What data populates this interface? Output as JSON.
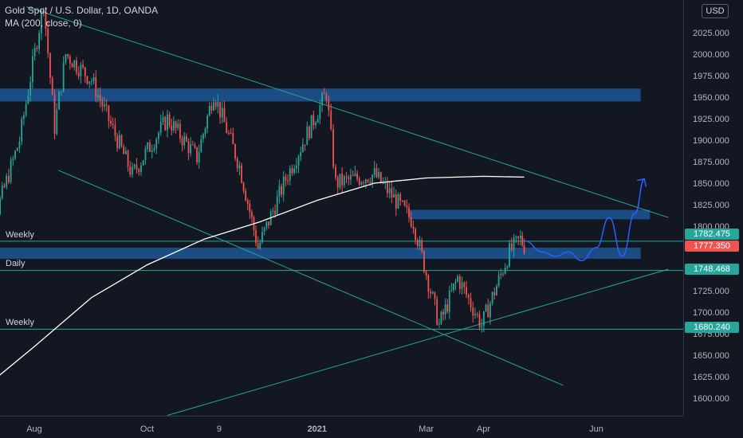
{
  "legend": {
    "title": "Gold Spot / U.S. Dollar, 1D, OANDA",
    "indicator": "MA (200, close, 0)"
  },
  "currency_button": "USD",
  "level_labels": [
    "Weekly",
    "Daily",
    "Weekly"
  ],
  "price_badges": [
    {
      "value": "1782.475",
      "color": "#26a69a"
    },
    {
      "value": "1777.350",
      "color": "#ef5350"
    },
    {
      "value": "1748.468",
      "color": "#26a69a"
    },
    {
      "value": "1680.240",
      "color": "#26a69a"
    }
  ],
  "colors": {
    "background": "#131722",
    "up": "#26a69a",
    "down": "#ef5350",
    "zone": "#1c4f8a",
    "trendline": "#26a69a",
    "ma": "#ffffff",
    "projection": "#2962ff"
  },
  "chart_data": {
    "type": "candlestick",
    "symbol": "Gold Spot / U.S. Dollar",
    "interval": "1D",
    "source": "OANDA",
    "x_ticks": [
      "Aug",
      "Oct",
      "9",
      "2021",
      "Mar",
      "Apr",
      "Jun"
    ],
    "y_ticks": [
      "1600.000",
      "1625.000",
      "1650.000",
      "1675.000",
      "1700.000",
      "1725.000",
      "1750.000",
      "1775.000",
      "1800.000",
      "1825.000",
      "1850.000",
      "1875.000",
      "1900.000",
      "1925.000",
      "1950.000",
      "1975.000",
      "2000.000",
      "2025.000"
    ],
    "ylim": [
      1587,
      2047
    ],
    "series_close_path": [
      [
        "2020-07-01",
        1785
      ],
      [
        "2020-07-10",
        1805
      ],
      [
        "2020-07-24",
        1900
      ],
      [
        "2020-08-06",
        2060
      ],
      [
        "2020-08-12",
        1915
      ],
      [
        "2020-08-18",
        2000
      ],
      [
        "2020-09-01",
        1970
      ],
      [
        "2020-09-23",
        1860
      ],
      [
        "2020-10-12",
        1925
      ],
      [
        "2020-10-28",
        1880
      ],
      [
        "2020-11-06",
        1955
      ],
      [
        "2020-11-20",
        1870
      ],
      [
        "2020-11-30",
        1775
      ],
      [
        "2020-12-15",
        1855
      ],
      [
        "2021-01-06",
        1955
      ],
      [
        "2021-01-11",
        1850
      ],
      [
        "2021-02-01",
        1860
      ],
      [
        "2021-02-22",
        1805
      ],
      [
        "2021-03-08",
        1685
      ],
      [
        "2021-03-18",
        1740
      ],
      [
        "2021-03-31",
        1685
      ],
      [
        "2021-04-15",
        1770
      ],
      [
        "2021-04-21",
        1785
      ],
      [
        "2021-04-23",
        1777.35
      ]
    ],
    "moving_average": {
      "name": "MA (200, close, 0)",
      "path": [
        [
          "2020-07-01",
          1605
        ],
        [
          "2020-08-01",
          1660
        ],
        [
          "2020-09-01",
          1717
        ],
        [
          "2020-10-01",
          1755
        ],
        [
          "2020-11-01",
          1785
        ],
        [
          "2020-12-01",
          1805
        ],
        [
          "2021-01-01",
          1830
        ],
        [
          "2021-02-01",
          1850
        ],
        [
          "2021-03-01",
          1856
        ],
        [
          "2021-04-01",
          1858
        ],
        [
          "2021-04-23",
          1857
        ]
      ]
    },
    "horizontal_levels": [
      {
        "label": "Weekly",
        "price": 1782.475
      },
      {
        "label": "Daily",
        "price": 1748.468
      },
      {
        "label": "Weekly",
        "price": 1680.24
      }
    ],
    "zones": [
      {
        "from": "2020-06-20",
        "to": "2021-06-25",
        "low": 1945,
        "high": 1960
      },
      {
        "from": "2021-02-20",
        "to": "2021-06-30",
        "low": 1808,
        "high": 1819
      },
      {
        "from": "2020-06-20",
        "to": "2021-06-25",
        "low": 1762,
        "high": 1775
      }
    ],
    "trendlines": [
      [
        [
          "2020-07-28",
          2055
        ],
        [
          "2021-07-10",
          1810
        ]
      ],
      [
        [
          "2020-08-14",
          1865
        ],
        [
          "2021-05-14",
          1615
        ]
      ],
      [
        [
          "2020-10-12",
          1580
        ],
        [
          "2021-07-10",
          1750
        ]
      ]
    ],
    "projection": [
      [
        "2021-04-23",
        1783
      ],
      [
        "2021-05-03",
        1770
      ],
      [
        "2021-05-10",
        1765
      ],
      [
        "2021-05-17",
        1770
      ],
      [
        "2021-05-24",
        1760
      ],
      [
        "2021-06-01",
        1775
      ],
      [
        "2021-06-08",
        1810
      ],
      [
        "2021-06-15",
        1765
      ],
      [
        "2021-06-22",
        1815
      ],
      [
        "2021-06-27",
        1855
      ]
    ],
    "last_price": 1777.35
  }
}
